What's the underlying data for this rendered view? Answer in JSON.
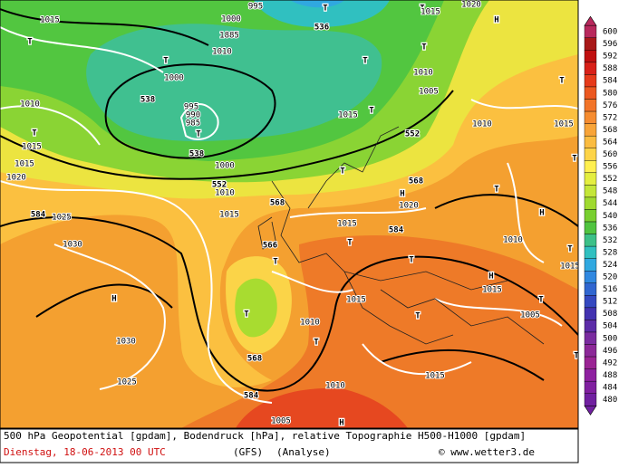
{
  "map": {
    "labels": [
      "T",
      "995",
      "536",
      "1000",
      "1885",
      "1010",
      "T",
      "1000",
      "538",
      "995",
      "990",
      "985",
      "T",
      "538",
      "1000",
      "552",
      "1010",
      "1015",
      "T",
      "1010",
      "1015",
      "1015",
      "1020",
      "584",
      "1025",
      "1030",
      "H",
      "1030",
      "1025",
      "1015",
      "T",
      "T",
      "1015",
      "1020",
      "H",
      "T",
      "T",
      "1010",
      "1005",
      "1015",
      "T",
      "552",
      "T",
      "568",
      "H",
      "1020",
      "568",
      "1015",
      "584",
      "T",
      "566",
      "T",
      "T",
      "T",
      "1010",
      "T",
      "568",
      "584",
      "1015",
      "T",
      "1010",
      "1015",
      "1005",
      "H",
      "T",
      "T",
      "1010",
      "1015",
      "T",
      "H",
      "1010",
      "H",
      "1015",
      "T",
      "1005",
      "T",
      "1015",
      "T"
    ]
  },
  "colorbar": {
    "values": [
      600,
      596,
      592,
      588,
      584,
      580,
      576,
      572,
      568,
      564,
      560,
      556,
      552,
      548,
      544,
      540,
      536,
      532,
      528,
      524,
      520,
      516,
      512,
      508,
      504,
      500,
      496,
      492,
      488,
      484,
      480
    ],
    "colors": [
      "#b8285c",
      "#a81818",
      "#c01010",
      "#d82018",
      "#e63a1a",
      "#ec5820",
      "#f27428",
      "#f68c30",
      "#f8a438",
      "#fbbc40",
      "#fdd448",
      "#fff050",
      "#e4ee40",
      "#c4e638",
      "#a0da30",
      "#78cf30",
      "#50c440",
      "#3cc088",
      "#30c0c0",
      "#30a8e0",
      "#3088e0",
      "#3066d0",
      "#3448c0",
      "#4232b0",
      "#5c2ca8",
      "#7a2ca0",
      "#8c2898",
      "#9a2494",
      "#8e20a0",
      "#8020a0",
      "#7020a0"
    ]
  },
  "caption": {
    "line1": "500 hPa Geopotential [gpdam], Bodendruck [hPa], relative Topographie H500-H1000 [gpdam]",
    "date": "Dienstag, 18-06-2013  00 UTC",
    "model": "(GFS)",
    "mode": "(Analyse)",
    "site": "© www.wetter3.de"
  }
}
